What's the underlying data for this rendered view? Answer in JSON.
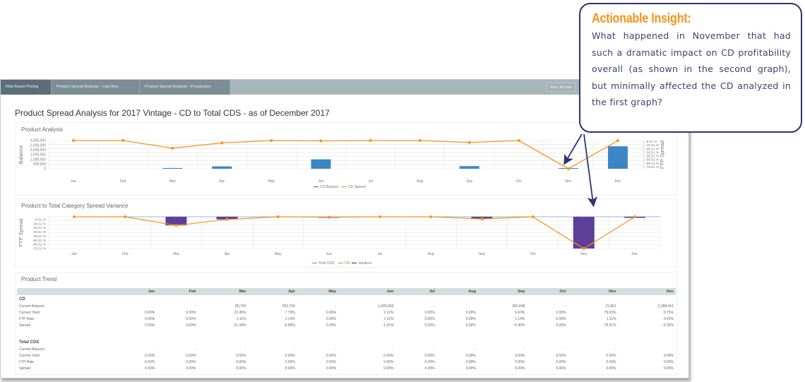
{
  "tabs": [
    {
      "label": "Risk Based Pricing",
      "active": true
    },
    {
      "label": "Product Spread Analysis - Last 3mo",
      "active": false
    },
    {
      "label": "Product Spread Analysis - Prospective",
      "active": false
    }
  ],
  "note": "Note: All rates",
  "page_title": "Product Spread Analysis for 2017 Vintage - CD to Total CDS - as of December 2017",
  "callout": {
    "title": "Actionable Insight",
    "title_suffix": ":",
    "body": "What happened in November that had such a dramatic impact on CD profitability overall (as shown in the second graph), but minimally affected the CD analyzed in the first graph?",
    "border_color": "#2e3373",
    "title_color": "#f7941d"
  },
  "months": [
    "Jan",
    "Feb",
    "Mar",
    "Apr",
    "May",
    "Jun",
    "Jul",
    "Aug",
    "Sep",
    "Oct",
    "Nov",
    "Dec"
  ],
  "colors": {
    "cd_balance": "#3d86c6",
    "cd_spread": "#f7941d",
    "total_cds": "#6fa8dc",
    "variance": "#5e3f9a"
  },
  "chart_data": [
    {
      "type": "bar",
      "title": "Product Analysis",
      "categories": [
        "Jan",
        "Feb",
        "Mar",
        "Apr",
        "May",
        "Jun",
        "Jul",
        "Aug",
        "Sep",
        "Oct",
        "Nov",
        "Dec"
      ],
      "series": [
        {
          "name": "CD Balance",
          "type": "bar",
          "axis": "left",
          "values": [
            0,
            0,
            80743,
            253709,
            0,
            1000000,
            0,
            0,
            282648,
            0,
            21861,
            2388416
          ]
        },
        {
          "name": "CD Spread",
          "type": "line",
          "axis": "right",
          "values": [
            0.0,
            0.0,
            -21.34,
            -6.65,
            0.0,
            -1.01,
            0.0,
            0.0,
            -5.46,
            0.0,
            -78.51,
            -0.32
          ]
        }
      ],
      "ylabel": "Balance",
      "ylabel_right": "FTP Spread",
      "yticks_left": [
        "3,000,000",
        "2,500,000",
        "2,000,000",
        "1,500,000",
        "1,000,000",
        "500,000",
        "0"
      ],
      "yticks_right": [
        "-8.51 %",
        "-18.51 %",
        "-28.51 %",
        "-38.51 %",
        "-48.51 %",
        "-58.51 %",
        "-68.51 %",
        "-78.51 %"
      ],
      "ylim": [
        0,
        3000000
      ],
      "ylim_right": [
        -78.51,
        1.49
      ],
      "legend": [
        "CD Balance",
        "CD Spread"
      ],
      "legend_position": "bottom",
      "grid": true
    },
    {
      "type": "bar",
      "title": "Product to Total Category Spread Variance",
      "categories": [
        "Jan",
        "Feb",
        "Mar",
        "Apr",
        "May",
        "Jun",
        "Jul",
        "Aug",
        "Sep",
        "Oct",
        "Nov",
        "Dec"
      ],
      "series": [
        {
          "name": "Total CDS",
          "type": "line",
          "values": [
            0,
            0,
            0,
            0,
            0,
            0,
            0,
            0,
            0,
            0,
            0,
            0
          ]
        },
        {
          "name": "CD",
          "type": "line",
          "values": [
            0.0,
            0.0,
            -21.34,
            -6.65,
            0.0,
            -1.01,
            0.0,
            0.0,
            -5.46,
            0.0,
            -78.51,
            -0.32
          ]
        },
        {
          "name": "Variance",
          "type": "bar",
          "values": [
            0.0,
            0.0,
            -21.34,
            -6.65,
            0.0,
            -1.01,
            0.0,
            0.0,
            -5.46,
            0.0,
            -78.51,
            -0.32
          ]
        }
      ],
      "ylabel": "FTP Spread",
      "yticks": [
        "-8.51 %",
        "-18.51 %",
        "-28.51 %",
        "-38.51 %",
        "-48.51 %",
        "-58.51 %",
        "-68.51 %",
        "-78.51 %"
      ],
      "ylim": [
        -78.51,
        1.49
      ],
      "legend": [
        "Total CDS",
        "CD",
        "Variance"
      ],
      "legend_position": "bottom",
      "grid": true
    }
  ],
  "trend": {
    "title": "Product Trend",
    "columns": [
      "",
      "Jan",
      "Feb",
      "Mar",
      "Apr",
      "May",
      "Jun",
      "Jul",
      "Aug",
      "Sep",
      "Oct",
      "Nov",
      "Dec"
    ],
    "sections": [
      {
        "name": "CD",
        "rows": [
          {
            "label": "Current Balance",
            "values": [
              "-",
              "-",
              "80,743",
              "253,709",
              "-",
              "1,000,000",
              "-",
              "-",
              "282,648",
              "-",
              "21,861",
              "2,388,416"
            ]
          },
          {
            "label": "Current Yield",
            "values": [
              "0.00%",
              "0.00%",
              "22.45%",
              "7.79%",
              "0.00%",
              "2.12%",
              "0.00%",
              "0.00%",
              "6.60%",
              "0.00%",
              "79.63%",
              "0.75%"
            ]
          },
          {
            "label": "FTP Rate",
            "values": [
              "0.00%",
              "0.00%",
              "1.11%",
              "1.14%",
              "0.00%",
              "1.11%",
              "0.00%",
              "0.00%",
              "1.14%",
              "0.00%",
              "1.11%",
              "0.42%"
            ]
          },
          {
            "label": "Spread",
            "values": [
              "0.00%",
              "0.00%",
              "-21.34%",
              "-6.65%",
              "0.00%",
              "-1.01%",
              "0.00%",
              "0.00%",
              "-5.46%",
              "0.00%",
              "-78.51%",
              "-0.32%"
            ]
          }
        ]
      },
      {
        "name": "Total CDS",
        "rows": [
          {
            "label": "Current Balance",
            "values": [
              "-",
              "-",
              "-",
              "-",
              "-",
              "-",
              "-",
              "-",
              "-",
              "-",
              "-",
              "-"
            ]
          },
          {
            "label": "Current Yield",
            "values": [
              "0.00%",
              "0.00%",
              "0.00%",
              "0.00%",
              "0.00%",
              "0.00%",
              "0.00%",
              "0.00%",
              "0.00%",
              "0.00%",
              "0.00%",
              "0.00%"
            ]
          },
          {
            "label": "FTP Rate",
            "values": [
              "0.00%",
              "0.00%",
              "0.00%",
              "0.00%",
              "0.00%",
              "0.00%",
              "0.00%",
              "0.00%",
              "0.00%",
              "0.00%",
              "0.00%",
              "0.00%"
            ]
          },
          {
            "label": "Spread",
            "values": [
              "0.00%",
              "0.00%",
              "0.00%",
              "0.00%",
              "0.00%",
              "0.00%",
              "0.00%",
              "0.00%",
              "0.00%",
              "0.00%",
              "0.00%",
              "0.00%"
            ]
          }
        ]
      }
    ]
  }
}
